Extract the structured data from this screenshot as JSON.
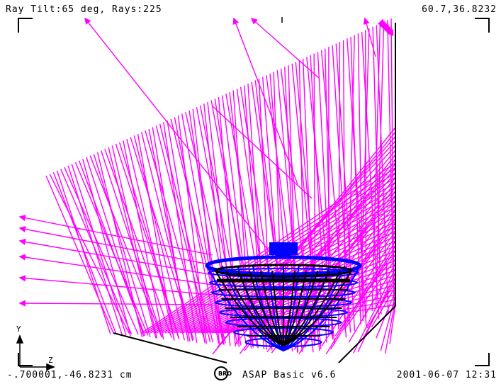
{
  "header": {
    "title": "Ray  Tilt:65  deg, Rays:225",
    "top_right_coords": "60.7,36.8232"
  },
  "footer": {
    "bottom_left_coords": "-.700001,-46.8231  cm",
    "app_name": "ASAP Basic v6.6",
    "date_time": "2001-06-07   12:31"
  },
  "axes": {
    "y_label": "Y",
    "z_label": "Z"
  },
  "colors": {
    "rays": "#ff00ff",
    "reflector_outer": "#0000ff",
    "reflector_inner": "#000000",
    "frame": "#000000"
  },
  "icons": {
    "logo": "bro-logo-icon"
  }
}
